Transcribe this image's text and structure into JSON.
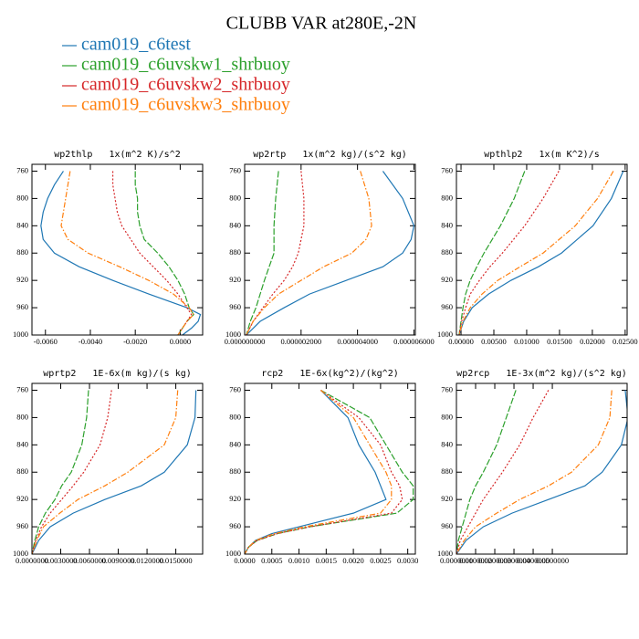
{
  "title": "CLUBB VAR at280E,-2N",
  "legend": [
    {
      "name": "cam019_c6test",
      "color": "#1f77b4",
      "dash": "none"
    },
    {
      "name": "cam019_c6uvskw1_shrbuoy",
      "color": "#2ca02c",
      "dash": "7,2"
    },
    {
      "name": "cam019_c6uvskw2_shrbuoy",
      "color": "#d62728",
      "dash": "2,2"
    },
    {
      "name": "cam019_c6uvskw3_shrbuoy",
      "color": "#ff7f0e",
      "dash": "6,2,1.5,2"
    }
  ],
  "chart_data": [
    {
      "type": "line",
      "title": "wp2thlp   1x(m^2 K)/s^2",
      "levels": [
        760,
        780,
        800,
        820,
        840,
        860,
        880,
        900,
        920,
        940,
        960,
        970,
        980,
        990,
        1000
      ],
      "series": [
        {
          "values": [
            -0.0052,
            -0.0056,
            -0.0059,
            -0.0061,
            -0.0062,
            -0.0061,
            -0.0056,
            -0.0045,
            -0.003,
            -0.0014,
            0.0003,
            0.0009,
            0.0008,
            0.0005,
            0.0001
          ]
        },
        {
          "values": [
            -0.002,
            -0.002,
            -0.0019,
            -0.0019,
            -0.0018,
            -0.0016,
            -0.001,
            -0.0005,
            -0.0001,
            0.0002,
            0.0004,
            0.0006,
            0.0003,
            0.0001,
            -0.0001
          ]
        },
        {
          "values": [
            -0.003,
            -0.003,
            -0.0029,
            -0.0028,
            -0.0026,
            -0.0022,
            -0.0018,
            -0.0012,
            -0.0006,
            -0.0001,
            0.0003,
            0.0005,
            0.0003,
            0.0001,
            -0.0001
          ]
        },
        {
          "values": [
            -0.0049,
            -0.005,
            -0.0051,
            -0.0052,
            -0.0053,
            -0.005,
            -0.0041,
            -0.0027,
            -0.0014,
            -0.0003,
            0.0004,
            0.0006,
            0.0003,
            0.0001,
            -0.0001
          ]
        }
      ],
      "xlim": [
        -0.0066,
        0.001
      ],
      "xticks": [
        {
          "value": -0.006,
          "label": "-0.0060"
        },
        {
          "value": -0.004,
          "label": "-0.0040"
        },
        {
          "value": -0.002,
          "label": "-0.0020"
        },
        {
          "value": 0,
          "label": "0.0000"
        }
      ],
      "ylim": [
        1000,
        750
      ],
      "yticks": [
        760,
        800,
        840,
        880,
        920,
        960,
        1000
      ]
    },
    {
      "type": "line",
      "title": "wp2rtp   1x(m^2 kg)/(s^2 kg)",
      "levels": [
        760,
        800,
        840,
        860,
        880,
        900,
        920,
        940,
        960,
        980,
        1000
      ],
      "series": [
        {
          "values": [
            4.9e-06,
            5.6e-06,
            6e-06,
            5.9e-06,
            5.6e-06,
            4.9e-06,
            3.6e-06,
            2.3e-06,
            1.4e-06,
            5.5e-07,
            6e-08
          ]
        },
        {
          "values": [
            1.2e-06,
            1.1e-06,
            1.04e-06,
            1.04e-06,
            1.04e-06,
            8.7e-07,
            7e-07,
            5.5e-07,
            4e-07,
            2e-07,
            6e-08
          ]
        },
        {
          "values": [
            2e-06,
            2.1e-06,
            2.1e-06,
            2e-06,
            1.9e-06,
            1.7e-06,
            1.4e-06,
            1e-06,
            6.5e-07,
            3e-07,
            6e-08
          ]
        },
        {
          "values": [
            4.1e-06,
            4.4e-06,
            4.5e-06,
            4.3e-06,
            3.8e-06,
            2.8e-06,
            2e-06,
            1.2e-06,
            7e-07,
            3e-07,
            6e-08
          ]
        }
      ],
      "xlim": [
        0,
        6.05e-06
      ],
      "xticks": [
        {
          "value": 0,
          "label": "0.000000000"
        },
        {
          "value": 2e-06,
          "label": "0.000002000"
        },
        {
          "value": 4e-06,
          "label": "0.000004000"
        },
        {
          "value": 6e-06,
          "label": "0.000006000"
        }
      ],
      "ylim": [
        1000,
        750
      ],
      "yticks": [
        760,
        800,
        840,
        880,
        920,
        960,
        1000
      ]
    },
    {
      "type": "line",
      "title": "wpthlp2   1x(m K^2)/s",
      "levels": [
        760,
        800,
        840,
        880,
        900,
        920,
        940,
        960,
        980,
        1000
      ],
      "series": [
        {
          "values": [
            0.0247,
            0.0229,
            0.0201,
            0.0153,
            0.0118,
            0.0076,
            0.0042,
            0.0017,
            0.0004,
            -0.0003
          ]
        },
        {
          "values": [
            0.0097,
            0.0081,
            0.006,
            0.0035,
            0.0024,
            0.0014,
            0.0007,
            0.0003,
            0.0,
            -0.0003
          ]
        },
        {
          "values": [
            0.0149,
            0.0125,
            0.0097,
            0.0063,
            0.0044,
            0.0028,
            0.0014,
            0.0007,
            0.0001,
            -0.0003
          ]
        },
        {
          "values": [
            0.0232,
            0.0208,
            0.0174,
            0.0125,
            0.009,
            0.0056,
            0.0032,
            0.0014,
            0.0003,
            -0.0003
          ]
        }
      ],
      "xlim": [
        -0.0007,
        0.0253
      ],
      "xticks": [
        {
          "value": 0,
          "label": "0.00000"
        },
        {
          "value": 0.005,
          "label": "0.00500"
        },
        {
          "value": 0.01,
          "label": "0.01000"
        },
        {
          "value": 0.015,
          "label": "0.01500"
        },
        {
          "value": 0.02,
          "label": "0.02000"
        },
        {
          "value": 0.025,
          "label": "0.02500"
        }
      ],
      "ylim": [
        1000,
        750
      ],
      "yticks": [
        760,
        800,
        840,
        880,
        920,
        960,
        1000
      ]
    },
    {
      "type": "line",
      "title": "wprtp2   1E-6x(m kg)/(s kg)",
      "levels": [
        760,
        800,
        840,
        880,
        900,
        920,
        940,
        960,
        980,
        1000
      ],
      "series": [
        {
          "values": [
            0.0171,
            0.017,
            0.0162,
            0.0138,
            0.0114,
            0.0076,
            0.0043,
            0.0019,
            0.0007,
            0
          ]
        },
        {
          "values": [
            0.0059,
            0.0057,
            0.0052,
            0.0041,
            0.0031,
            0.0024,
            0.0014,
            0.0007,
            0.0003,
            0
          ]
        },
        {
          "values": [
            0.0083,
            0.0079,
            0.0071,
            0.0054,
            0.0043,
            0.0031,
            0.0019,
            0.001,
            0.0004,
            0
          ]
        },
        {
          "values": [
            0.0152,
            0.015,
            0.0138,
            0.01,
            0.0076,
            0.0048,
            0.0029,
            0.0012,
            0.0005,
            0
          ]
        }
      ],
      "xlim": [
        0,
        0.0178
      ],
      "xticks": [
        {
          "value": 0,
          "label": "0.0000000"
        },
        {
          "value": 0.003,
          "label": "0.0030000"
        },
        {
          "value": 0.006,
          "label": "0.0060000"
        },
        {
          "value": 0.009,
          "label": "0.0090000"
        },
        {
          "value": 0.012,
          "label": "0.0120000"
        },
        {
          "value": 0.015,
          "label": "0.0150000"
        }
      ],
      "ylim": [
        1000,
        750
      ],
      "yticks": [
        760,
        800,
        840,
        880,
        920,
        960,
        1000
      ]
    },
    {
      "type": "line",
      "title": "rcp2   1E-6x(kg^2)/(kg^2)",
      "levels": [
        760,
        800,
        840,
        880,
        900,
        920,
        940,
        960,
        970,
        980,
        990,
        1000
      ],
      "series": [
        {
          "values": [
            0.0014,
            0.0019,
            0.0021,
            0.0024,
            0.0025,
            0.0026,
            0.002,
            0.001,
            0.0005,
            0.0002,
            7e-05,
            0
          ]
        },
        {
          "values": [
            0.0014,
            0.0023,
            0.0026,
            0.0029,
            0.0031,
            0.0031,
            0.0028,
            0.0012,
            0.0006,
            0.00023,
            7e-05,
            0
          ]
        },
        {
          "values": [
            0.0014,
            0.0021,
            0.0025,
            0.0027,
            0.00285,
            0.0029,
            0.0027,
            0.0012,
            0.0006,
            0.00023,
            7e-05,
            0
          ]
        },
        {
          "values": [
            0.0014,
            0.002,
            0.0023,
            0.0026,
            0.0027,
            0.0027,
            0.0025,
            0.0011,
            0.00055,
            0.0002,
            7e-05,
            0
          ]
        }
      ],
      "xlim": [
        0,
        0.00314
      ],
      "xticks": [
        {
          "value": 0,
          "label": "0.0000"
        },
        {
          "value": 0.0005,
          "label": "0.0005"
        },
        {
          "value": 0.001,
          "label": "0.0010"
        },
        {
          "value": 0.0015,
          "label": "0.0015"
        },
        {
          "value": 0.002,
          "label": "0.0020"
        },
        {
          "value": 0.0025,
          "label": "0.0025"
        },
        {
          "value": 0.003,
          "label": "0.0030"
        }
      ],
      "ylim": [
        1000,
        750
      ],
      "yticks": [
        760,
        800,
        840,
        880,
        920,
        960,
        1000
      ]
    },
    {
      "type": "line",
      "title": "wp2rcp   1E-3x(m^2 kg)/(s^2 kg)",
      "levels": [
        760,
        800,
        840,
        880,
        900,
        920,
        940,
        960,
        980,
        1000
      ],
      "series": [
        {
          "values": [
            0.088,
            0.0895,
            0.086,
            0.076,
            0.067,
            0.048,
            0.029,
            0.014,
            0.005,
            0
          ]
        },
        {
          "values": [
            0.031,
            0.026,
            0.021,
            0.014,
            0.01,
            0.007,
            0.005,
            0.003,
            0.001,
            0
          ]
        },
        {
          "values": [
            0.048,
            0.04,
            0.033,
            0.024,
            0.019,
            0.014,
            0.01,
            0.006,
            0.002,
            0
          ]
        },
        {
          "values": [
            0.081,
            0.08,
            0.074,
            0.06,
            0.048,
            0.033,
            0.021,
            0.01,
            0.004,
            0
          ]
        }
      ],
      "xlim": [
        0,
        0.089
      ],
      "xticks": [
        {
          "value": 0,
          "label": "0.0000000"
        },
        {
          "value": 0.01,
          "label": "0.0100000"
        },
        {
          "value": 0.02,
          "label": "0.0200000"
        },
        {
          "value": 0.03,
          "label": "0.0300000"
        },
        {
          "value": 0.04,
          "label": "0.0400000"
        },
        {
          "value": 0.05,
          "label": "0.0500000"
        }
      ],
      "ylim": [
        1000,
        750
      ],
      "yticks": [
        760,
        800,
        840,
        880,
        920,
        960,
        1000
      ]
    }
  ]
}
